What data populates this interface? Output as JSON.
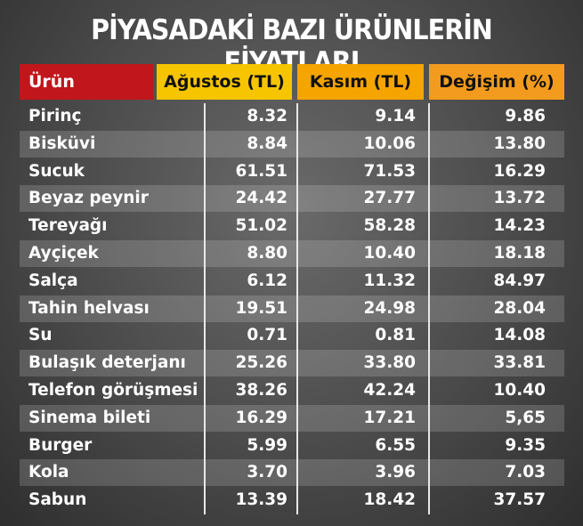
{
  "header": {
    "title": "PİYASADAKİ BAZI ÜRÜNLERİN FİYATLARI"
  },
  "table": {
    "columns": [
      "Ürün",
      "Ağustos (TL)",
      "Kasım (TL)",
      "Değişim (%)"
    ],
    "rows": [
      [
        "Pirinç",
        "8.32",
        "9.14",
        "9.86"
      ],
      [
        "Bisküvi",
        "8.84",
        "10.06",
        "13.80"
      ],
      [
        "Sucuk",
        "61.51",
        "71.53",
        "16.29"
      ],
      [
        "Beyaz peynir",
        "24.42",
        "27.77",
        "13.72"
      ],
      [
        "Tereyağı",
        "51.02",
        "58.28",
        "14.23"
      ],
      [
        "Ayçiçek",
        "8.80",
        "10.40",
        "18.18"
      ],
      [
        "Salça",
        "6.12",
        "11.32",
        "84.97"
      ],
      [
        "Tahin helvası",
        "19.51",
        "24.98",
        "28.04"
      ],
      [
        "Su",
        "0.71",
        "0.81",
        "14.08"
      ],
      [
        "Bulaşık deterjanı",
        "25.26",
        "33.80",
        "33.81"
      ],
      [
        "Telefon görüşmesi",
        "38.26",
        "42.24",
        "10.40"
      ],
      [
        "Sinema bileti",
        "16.29",
        "17.21",
        "5,65"
      ],
      [
        "Burger",
        "5.99",
        "6.55",
        "9.35"
      ],
      [
        "Kola",
        "3.70",
        "3.96",
        "7.03"
      ],
      [
        "Sabun",
        "13.39",
        "18.42",
        "37.57"
      ]
    ]
  }
}
